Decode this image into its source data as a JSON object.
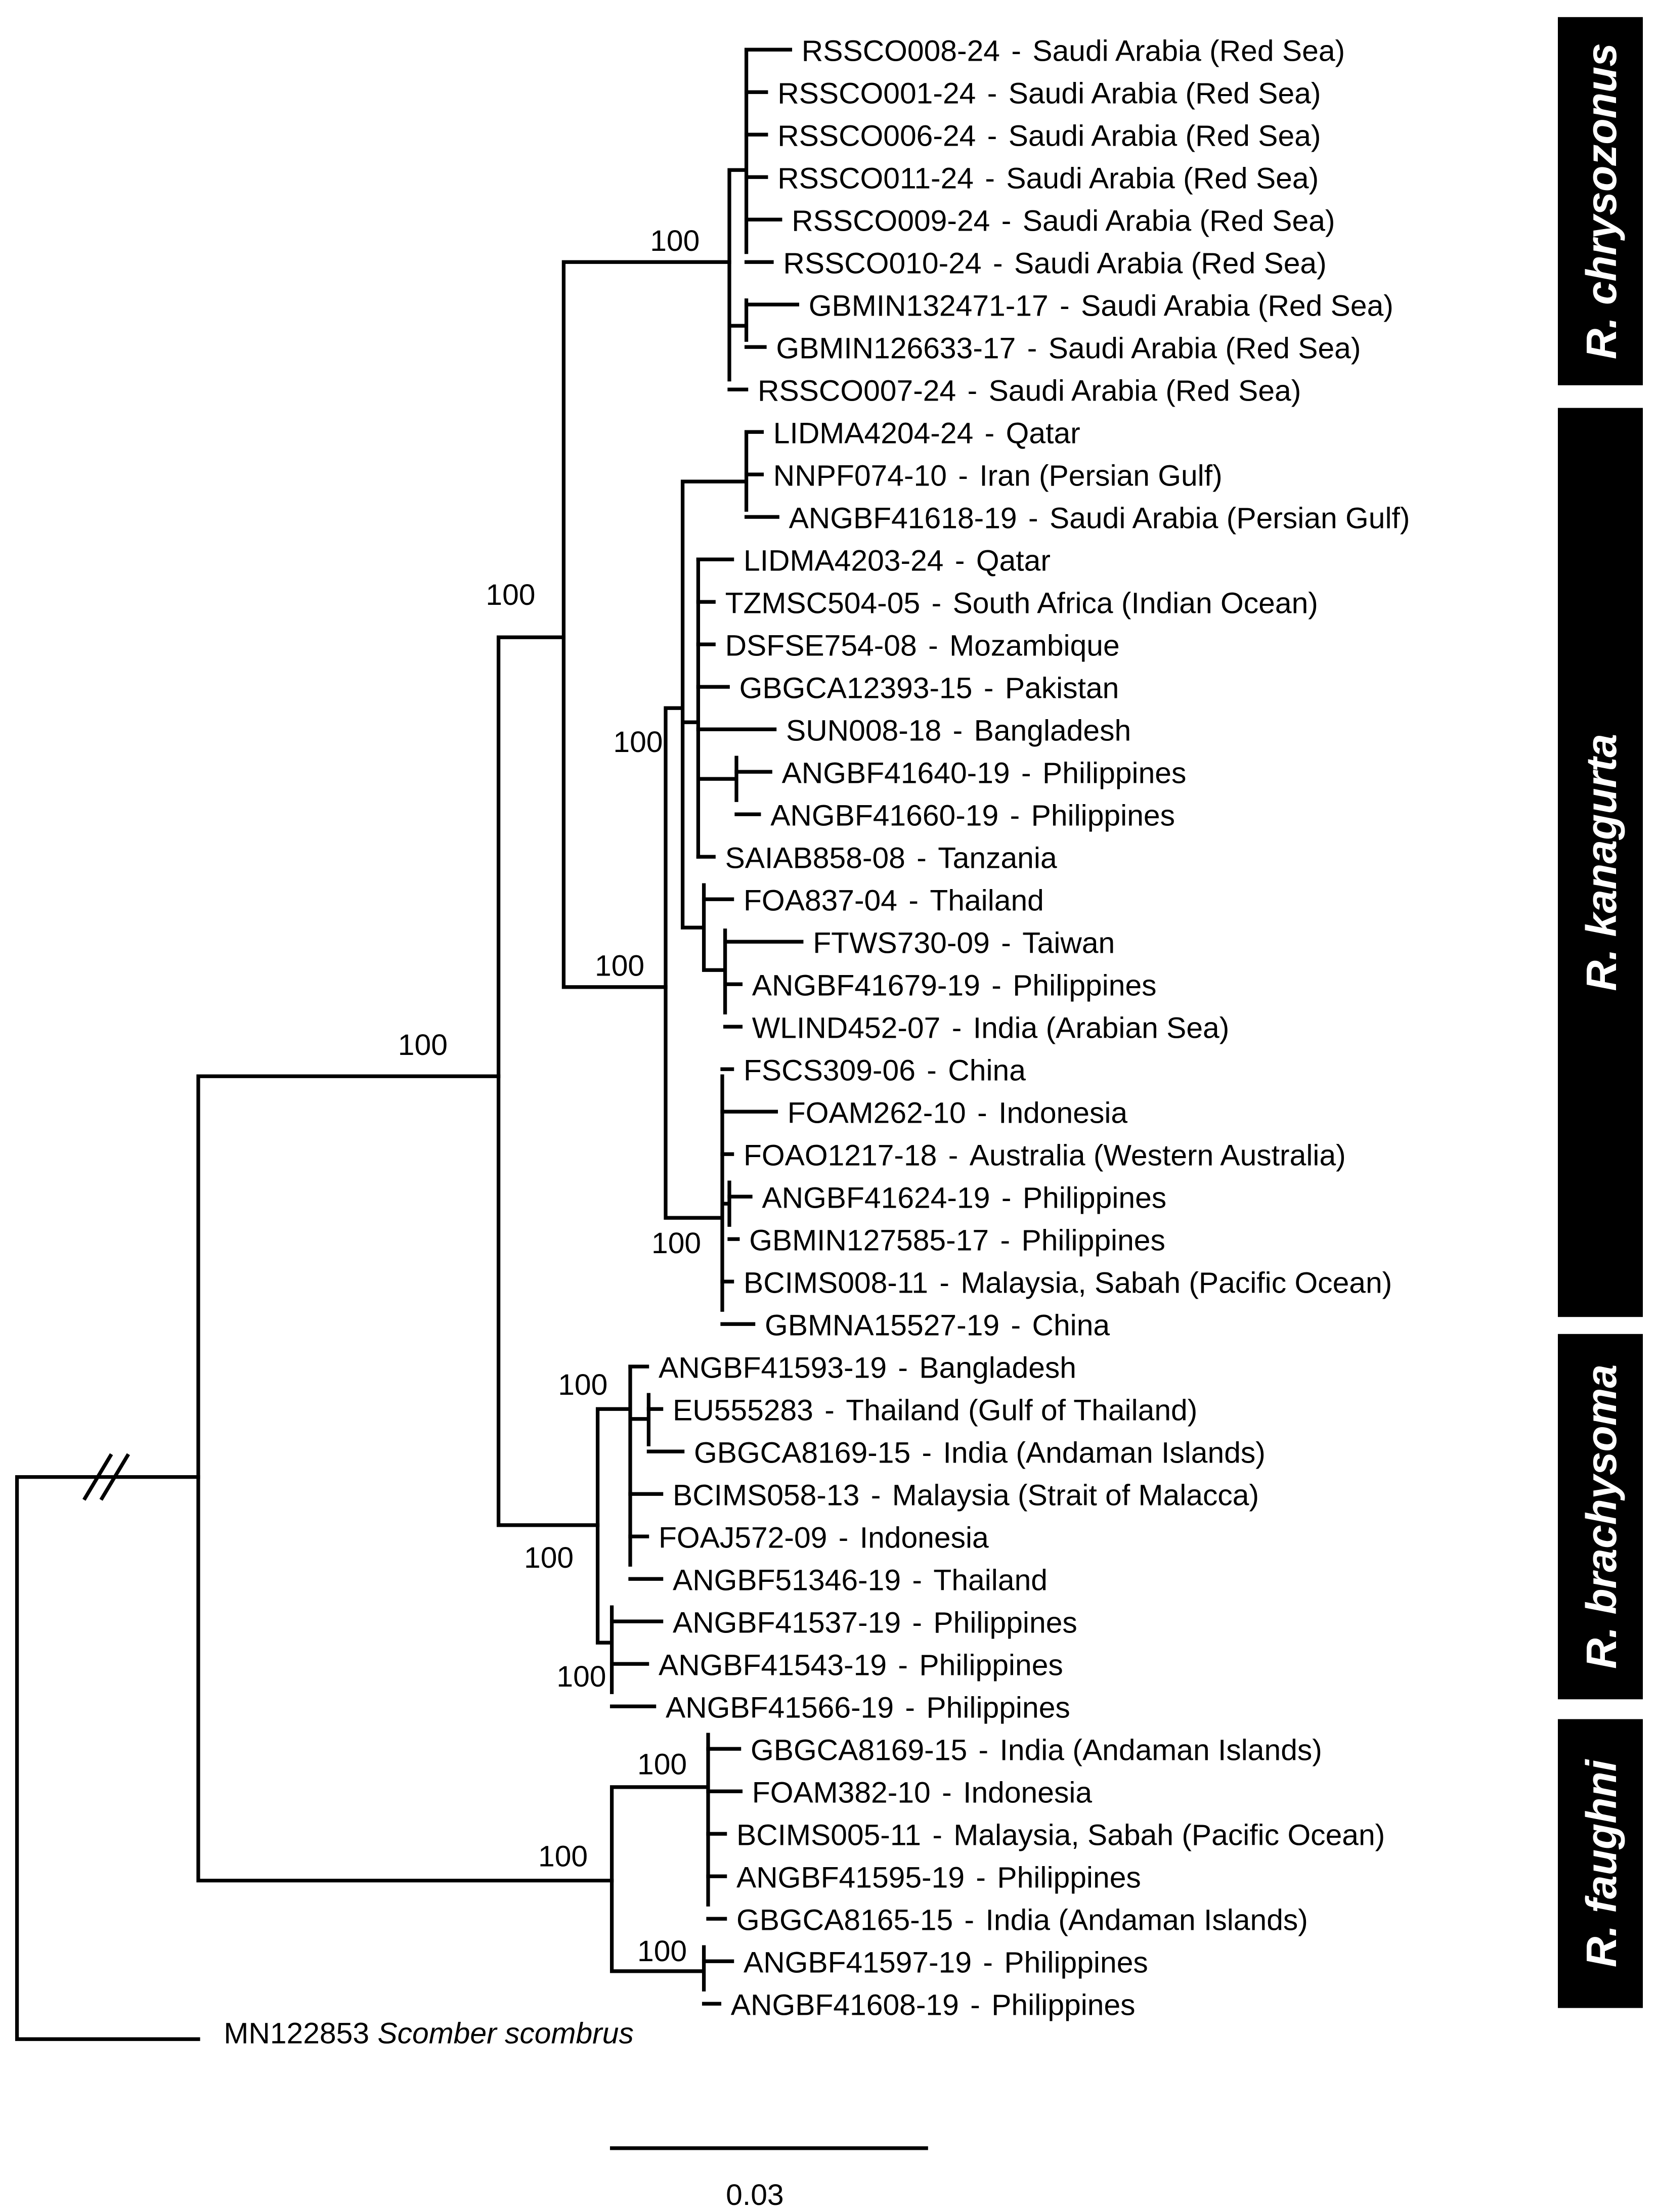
{
  "leaf_separator": "-",
  "leaves": [
    {
      "id": "RSSCO008-24",
      "location": "Saudi Arabia (Red Sea)"
    },
    {
      "id": "RSSCO001-24",
      "location": "Saudi Arabia (Red Sea)"
    },
    {
      "id": "RSSCO006-24",
      "location": "Saudi Arabia (Red Sea)"
    },
    {
      "id": "RSSCO011-24",
      "location": "Saudi Arabia (Red Sea)"
    },
    {
      "id": "RSSCO009-24",
      "location": "Saudi Arabia (Red Sea)"
    },
    {
      "id": "RSSCO010-24",
      "location": "Saudi Arabia (Red Sea)"
    },
    {
      "id": "GBMIN132471-17",
      "location": "Saudi Arabia (Red Sea)"
    },
    {
      "id": "GBMIN126633-17",
      "location": "Saudi Arabia (Red Sea)"
    },
    {
      "id": "RSSCO007-24",
      "location": "Saudi Arabia (Red Sea)"
    },
    {
      "id": "LIDMA4204-24",
      "location": "Qatar"
    },
    {
      "id": "NNPF074-10",
      "location": "Iran (Persian Gulf)"
    },
    {
      "id": "ANGBF41618-19",
      "location": "Saudi Arabia (Persian Gulf)"
    },
    {
      "id": "LIDMA4203-24",
      "location": "Qatar"
    },
    {
      "id": "TZMSC504-05",
      "location": "South Africa (Indian Ocean)"
    },
    {
      "id": "DSFSE754-08",
      "location": "Mozambique"
    },
    {
      "id": "GBGCA12393-15",
      "location": "Pakistan"
    },
    {
      "id": "SUN008-18",
      "location": "Bangladesh"
    },
    {
      "id": "ANGBF41640-19",
      "location": "Philippines"
    },
    {
      "id": "ANGBF41660-19",
      "location": "Philippines"
    },
    {
      "id": "SAIAB858-08",
      "location": "Tanzania"
    },
    {
      "id": "FOA837-04",
      "location": "Thailand"
    },
    {
      "id": "FTWS730-09",
      "location": "Taiwan"
    },
    {
      "id": "ANGBF41679-19",
      "location": "Philippines"
    },
    {
      "id": "WLIND452-07",
      "location": "India (Arabian Sea)"
    },
    {
      "id": "FSCS309-06",
      "location": "China"
    },
    {
      "id": "FOAM262-10",
      "location": "Indonesia"
    },
    {
      "id": "FOAO1217-18",
      "location": "Australia (Western Australia)"
    },
    {
      "id": "ANGBF41624-19",
      "location": "Philippines"
    },
    {
      "id": "GBMIN127585-17",
      "location": "Philippines"
    },
    {
      "id": "BCIMS008-11",
      "location": "Malaysia, Sabah (Pacific Ocean)"
    },
    {
      "id": "GBMNA15527-19",
      "location": "China"
    },
    {
      "id": "ANGBF41593-19",
      "location": "Bangladesh"
    },
    {
      "id": "EU555283",
      "location": "Thailand (Gulf of Thailand)"
    },
    {
      "id": "GBGCA8169-15",
      "location": "India (Andaman Islands)"
    },
    {
      "id": "BCIMS058-13",
      "location": "Malaysia (Strait of Malacca)"
    },
    {
      "id": "FOAJ572-09",
      "location": "Indonesia"
    },
    {
      "id": "ANGBF51346-19",
      "location": "Thailand"
    },
    {
      "id": "ANGBF41537-19",
      "location": "Philippines"
    },
    {
      "id": "ANGBF41543-19",
      "location": "Philippines"
    },
    {
      "id": "ANGBF41566-19",
      "location": "Philippines"
    },
    {
      "id": "GBGCA8169-15",
      "location": "India (Andaman Islands)"
    },
    {
      "id": "FOAM382-10",
      "location": "Indonesia"
    },
    {
      "id": "BCIMS005-11",
      "location": "Malaysia, Sabah (Pacific Ocean)"
    },
    {
      "id": "ANGBF41595-19",
      "location": "Philippines"
    },
    {
      "id": "GBGCA8165-15",
      "location": "India (Andaman Islands)"
    },
    {
      "id": "ANGBF41597-19",
      "location": "Philippines"
    },
    {
      "id": "ANGBF41608-19",
      "location": "Philippines"
    }
  ],
  "outgroup": {
    "id": "MN122853",
    "species": "Scomber scombrus"
  },
  "support_values": [
    "100",
    "100",
    "100",
    "100",
    "100",
    "100",
    "100",
    "100",
    "100",
    "100",
    "100",
    "100"
  ],
  "clades": [
    "R. chrysozonus",
    "R. kanagurta",
    "R. brachysoma",
    "R. faughni"
  ],
  "scale_bar": {
    "value": "0.03"
  }
}
